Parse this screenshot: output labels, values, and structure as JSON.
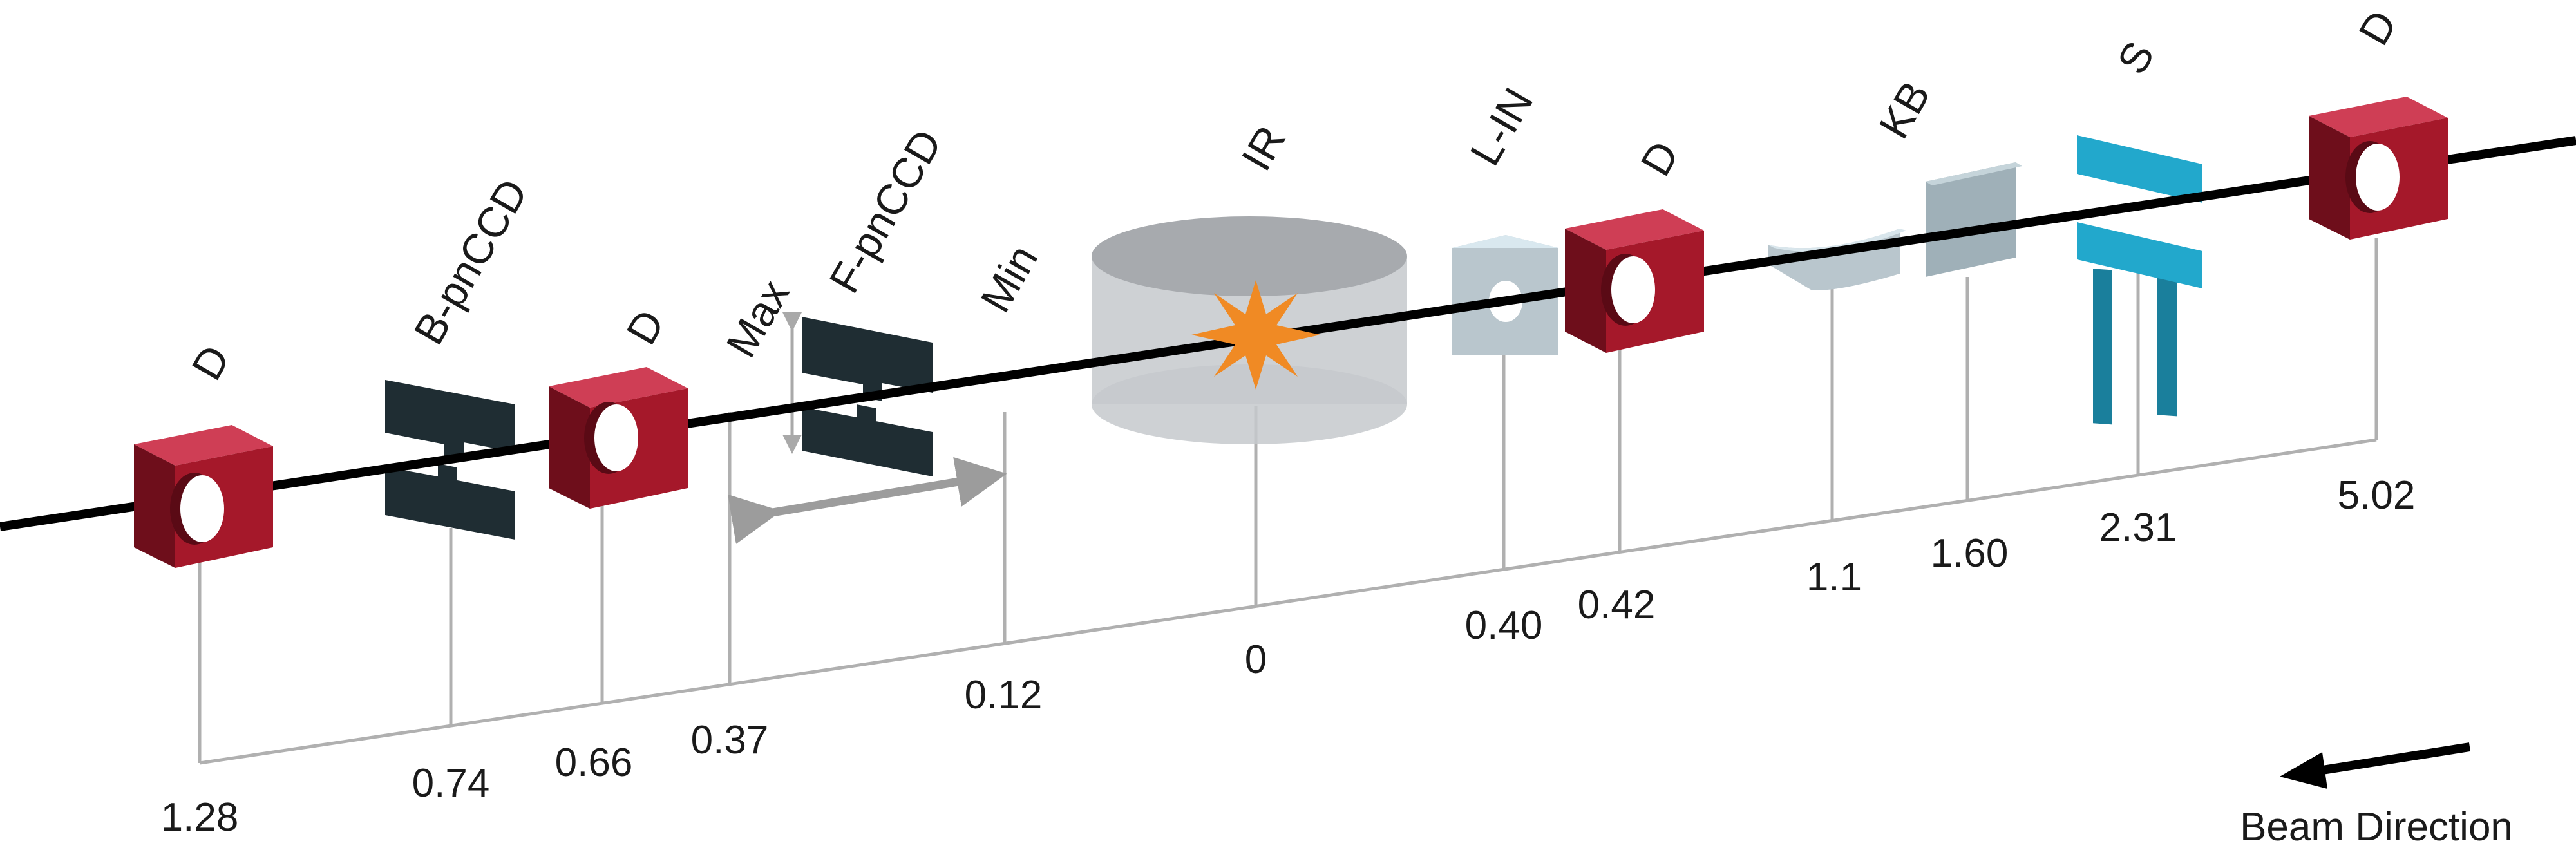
{
  "beam_direction_label": "Beam Direction",
  "colors": {
    "beamline": "#000000",
    "scale": "#b0b0b0",
    "detector_front": "#a5182a",
    "detector_top": "#cf3e55",
    "detector_side": "#6e0e1b",
    "pnccd": "#1f2d33",
    "ir_chamber": "#c6c9cd",
    "star": "#f08a24",
    "lens": "#b9c6cd",
    "kb_mirror": "#9fb0b8",
    "slits": "#22a8cc"
  },
  "components": [
    {
      "id": "d1",
      "label": "D",
      "kind": "detector",
      "position": "1.28"
    },
    {
      "id": "bpnccd",
      "label": "B-pnCCD",
      "kind": "pnccd",
      "position": "0.74"
    },
    {
      "id": "d2",
      "label": "D",
      "kind": "detector",
      "position": "0.66"
    },
    {
      "id": "max",
      "label": "Max",
      "kind": "marker",
      "position": "0.37"
    },
    {
      "id": "fpnccd",
      "label": "F-pnCCD",
      "kind": "pnccd-movable",
      "position": ""
    },
    {
      "id": "min",
      "label": "Min",
      "kind": "marker",
      "position": "0.12"
    },
    {
      "id": "ir",
      "label": "IR",
      "kind": "interaction-region",
      "position": "0"
    },
    {
      "id": "lin",
      "label": "L-IN",
      "kind": "lens",
      "position": "0.40"
    },
    {
      "id": "d3",
      "label": "D",
      "kind": "detector",
      "position": "0.42"
    },
    {
      "id": "kb",
      "label": "KB",
      "kind": "kb-mirrors",
      "position": "1.1"
    },
    {
      "id": "kb2",
      "label": "",
      "kind": "kb-mirror-2",
      "position": "1.60"
    },
    {
      "id": "s",
      "label": "S",
      "kind": "slits",
      "position": "2.31"
    },
    {
      "id": "d4",
      "label": "D",
      "kind": "detector",
      "position": "5.02"
    }
  ]
}
